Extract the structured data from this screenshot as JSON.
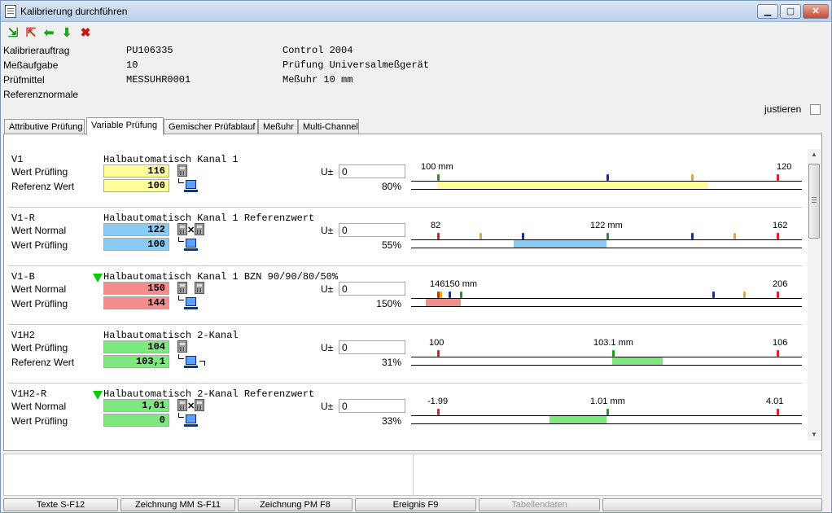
{
  "window": {
    "title": "Kalibrierung durchführen"
  },
  "header": {
    "auftrag_label": "Kalibrierauftrag",
    "auftrag_value": "PU106335",
    "auftrag_extra": "Control 2004",
    "aufgabe_label": "Meßaufgabe",
    "aufgabe_value": "10",
    "aufgabe_extra": "Prüfung Universalmeßgerät",
    "pruefmittel_label": "Prüfmittel",
    "pruefmittel_value": "MESSUHR0001",
    "pruefmittel_extra": "Meßuhr 10 mm",
    "referenz_label": "Referenznormale",
    "justieren_label": "justieren"
  },
  "tabs": [
    "Attributive Prüfung",
    "Variable Prüfung",
    "Gemischer Prüfablauf",
    "Meßuhr",
    "Multi-Channel"
  ],
  "u_label": "U±",
  "groups": [
    {
      "id": "V1",
      "desc": "Halbautomatisch Kanal 1",
      "label1": "Wert Prüfling",
      "val1": "116",
      "label2": "Referenz Wert",
      "val2": "100",
      "u": "0",
      "pct": "80%",
      "ticks": [
        {
          "text": "100  mm",
          "pos": 0.025
        },
        {
          "text": "120",
          "pos": 0.935
        }
      ],
      "marks": [
        {
          "color": "#1b9e1b",
          "pos": 0.067
        },
        {
          "color": "#0a2ad0",
          "pos": 0.5
        },
        {
          "color": "#e6b000",
          "pos": 0.717
        },
        {
          "color": "#d22",
          "pos": 0.935
        }
      ],
      "bar": {
        "from": 0.067,
        "to": 0.76,
        "color": "#ffff99"
      }
    },
    {
      "id": "V1-R",
      "desc": "Halbautomatisch Kanal 1 Referenzwert",
      "label1": "Wert Normal",
      "val1": "122",
      "label2": "Wert Prüfling",
      "val2": "100",
      "u": "0",
      "pct": "55%",
      "ticks": [
        {
          "text": "82",
          "pos": 0.05
        },
        {
          "text": "122 mm",
          "pos": 0.458
        },
        {
          "text": "162",
          "pos": 0.925
        }
      ],
      "marks": [
        {
          "color": "#d22",
          "pos": 0.067
        },
        {
          "color": "#e6b000",
          "pos": 0.175
        },
        {
          "color": "#0a2ad0",
          "pos": 0.283
        },
        {
          "color": "#1b9e1b",
          "pos": 0.5
        },
        {
          "color": "#0a2ad0",
          "pos": 0.717
        },
        {
          "color": "#e6b000",
          "pos": 0.825
        },
        {
          "color": "#d22",
          "pos": 0.935
        }
      ],
      "bar": {
        "from": 0.263,
        "to": 0.5,
        "color": "#88ccf6"
      }
    },
    {
      "id": "V1-B",
      "desc": "Halbautomatisch Kanal 1 BZN 90/90/80/50%",
      "label1": "Wert Normal",
      "val1": "150",
      "label2": "Wert Prüfling",
      "val2": "144",
      "u": "0",
      "pct": "150%",
      "flag": true,
      "ticks": [
        {
          "text": "146150 mm",
          "pos": 0.048
        },
        {
          "text": "206",
          "pos": 0.925
        }
      ],
      "marks": [
        {
          "color": "#d22",
          "pos": 0.067
        },
        {
          "color": "#e6b000",
          "pos": 0.072
        },
        {
          "color": "#0a2ad0",
          "pos": 0.096
        },
        {
          "color": "#1b9e1b",
          "pos": 0.125
        },
        {
          "color": "#0a2ad0",
          "pos": 0.77
        },
        {
          "color": "#e6b000",
          "pos": 0.85
        },
        {
          "color": "#d22",
          "pos": 0.935
        }
      ],
      "bar": {
        "from": 0.038,
        "to": 0.127,
        "color": "#f58c8c"
      }
    },
    {
      "id": "V1H2",
      "desc": "Halbautomatisch 2-Kanal",
      "label1": "Wert Prüfling",
      "val1": "104",
      "label2": "Referenz Wert",
      "val2": "103,1",
      "u": "0",
      "pct": "31%",
      "ticks": [
        {
          "text": "100",
          "pos": 0.046
        },
        {
          "text": "103.1 mm",
          "pos": 0.467
        },
        {
          "text": "106",
          "pos": 0.925
        }
      ],
      "marks": [
        {
          "color": "#d22",
          "pos": 0.067
        },
        {
          "color": "#1b9e1b",
          "pos": 0.515
        },
        {
          "color": "#d22",
          "pos": 0.935
        }
      ],
      "bar": {
        "from": 0.515,
        "to": 0.644,
        "color": "#7de87d"
      }
    },
    {
      "id": "V1H2-R",
      "desc": "Halbautomatisch 2-Kanal Referenzwert",
      "label1": "Wert Normal",
      "val1": "1,01",
      "label2": "Wert Prüfling",
      "val2": "0",
      "u": "0",
      "pct": "33%",
      "flag": true,
      "ticks": [
        {
          "text": "-1.99",
          "pos": 0.042
        },
        {
          "text": "1.01 mm",
          "pos": 0.458
        },
        {
          "text": "4.01",
          "pos": 0.908
        }
      ],
      "marks": [
        {
          "color": "#d22",
          "pos": 0.067
        },
        {
          "color": "#1b9e1b",
          "pos": 0.5
        },
        {
          "color": "#d22",
          "pos": 0.935
        }
      ],
      "bar": {
        "from": 0.354,
        "to": 0.5,
        "color": "#7de87d"
      }
    }
  ],
  "group_colors": [
    "#ffff99",
    "#88ccf6",
    "#f58c8c",
    "#7de87d",
    "#7de87d"
  ],
  "fkeys": [
    "Texte S-F12",
    "Zeichnung MM S-F11",
    "Zeichnung PM F8",
    "Ereignis F9",
    "Tabellendaten",
    ""
  ]
}
